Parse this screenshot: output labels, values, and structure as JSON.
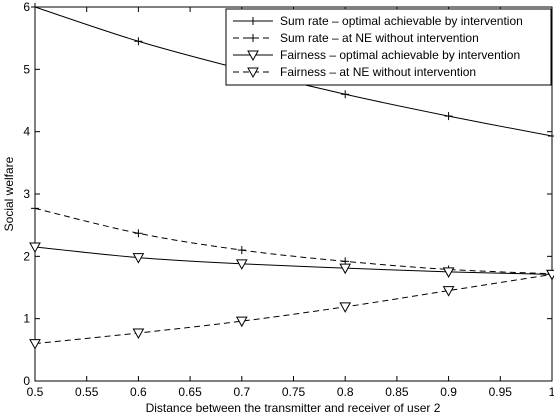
{
  "chart_data": {
    "type": "line",
    "title": "",
    "xlabel": "Distance between the transmitter and receiver of user 2",
    "ylabel": "Social welfare",
    "xlim": [
      0.5,
      1.0
    ],
    "ylim": [
      0,
      6
    ],
    "xticks": [
      0.5,
      0.55,
      0.6,
      0.65,
      0.7,
      0.75,
      0.8,
      0.85,
      0.9,
      0.95,
      1.0
    ],
    "xtick_labels": [
      "0.5",
      "0.55",
      "0.6",
      "0.65",
      "0.7",
      "0.75",
      "0.8",
      "0.85",
      "0.9",
      "0.95",
      "1"
    ],
    "yticks": [
      0,
      1,
      2,
      3,
      4,
      5,
      6
    ],
    "ytick_labels": [
      "0",
      "1",
      "2",
      "3",
      "4",
      "5",
      "6"
    ],
    "grid": false,
    "legend_position": "top-right",
    "x": [
      0.5,
      0.6,
      0.7,
      0.8,
      0.9,
      1.0
    ],
    "series": [
      {
        "name": "Sum rate – optimal achievable by intervention",
        "values": [
          6.0,
          5.45,
          5.0,
          4.6,
          4.25,
          3.93
        ],
        "line_style": "solid",
        "marker": "plus",
        "color": "#000000"
      },
      {
        "name": "Sum rate – at NE without intervention",
        "values": [
          2.77,
          2.37,
          2.1,
          1.92,
          1.79,
          1.72
        ],
        "line_style": "dashed",
        "marker": "plus",
        "color": "#000000"
      },
      {
        "name": "Fairness – optimal achievable by intervention",
        "values": [
          2.15,
          1.98,
          1.88,
          1.81,
          1.75,
          1.71
        ],
        "line_style": "solid",
        "marker": "triangle-down",
        "color": "#000000"
      },
      {
        "name": "Fairness – at NE without intervention",
        "values": [
          0.6,
          0.77,
          0.96,
          1.19,
          1.45,
          1.71
        ],
        "line_style": "dashed",
        "marker": "triangle-down",
        "color": "#000000"
      }
    ]
  }
}
